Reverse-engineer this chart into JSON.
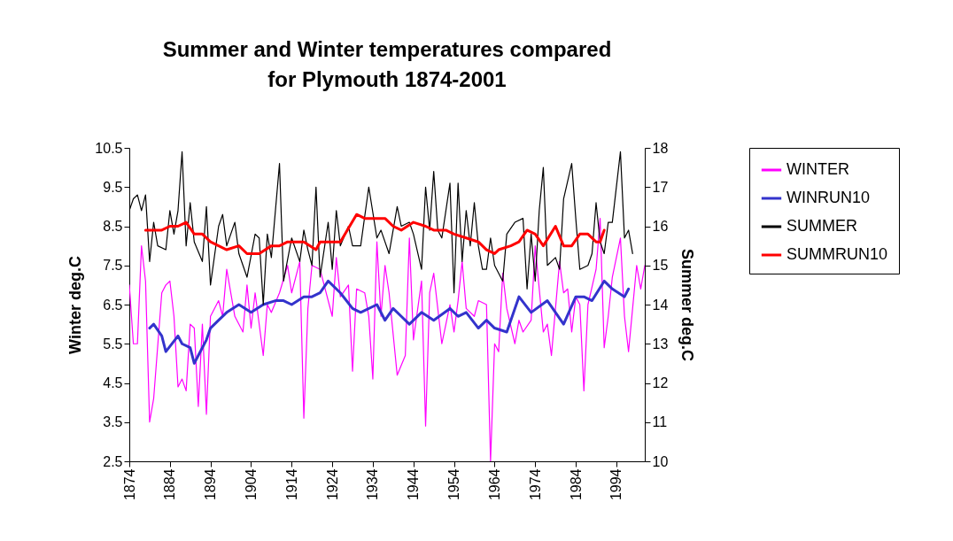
{
  "chart_data": {
    "type": "line",
    "title": "Summer and Winter temperatures compared\nfor Plymouth 1874-2001",
    "ylabel": "Winter deg.C",
    "y2label": "Summer deg.C",
    "xlim": [
      1874,
      2001
    ],
    "xticks": [
      1874,
      1884,
      1894,
      1904,
      1914,
      1924,
      1934,
      1944,
      1954,
      1964,
      1974,
      1984,
      1994
    ],
    "ylim": [
      2.5,
      10.5
    ],
    "yticks": [
      2.5,
      3.5,
      4.5,
      5.5,
      6.5,
      7.5,
      8.5,
      9.5,
      10.5
    ],
    "y2lim": [
      10,
      18
    ],
    "y2ticks": [
      10,
      11,
      12,
      13,
      14,
      15,
      16,
      17,
      18
    ],
    "legend": "right",
    "grid": false,
    "marker": "none",
    "line_style": "solid",
    "series": [
      {
        "name": "WINTER",
        "color": "#ff00ff",
        "x": [
          1874,
          1875,
          1876,
          1877,
          1878,
          1879,
          1880,
          1882,
          1883,
          1884,
          1885,
          1886,
          1887,
          1888,
          1889,
          1890,
          1891,
          1892,
          1893,
          1894,
          1896,
          1897,
          1898,
          1900,
          1902,
          1903,
          1904,
          1905,
          1907,
          1908,
          1909,
          1911,
          1913,
          1914,
          1916,
          1917,
          1918,
          1919,
          1921,
          1922,
          1924,
          1925,
          1926,
          1928,
          1929,
          1930,
          1932,
          1933,
          1934,
          1935,
          1936,
          1937,
          1938,
          1940,
          1942,
          1943,
          1944,
          1946,
          1947,
          1948,
          1949,
          1951,
          1952,
          1953,
          1954,
          1955,
          1956,
          1957,
          1959,
          1960,
          1962,
          1963,
          1964,
          1965,
          1966,
          1967,
          1969,
          1970,
          1971,
          1973,
          1974,
          1976,
          1977,
          1978,
          1980,
          1981,
          1982,
          1983,
          1984,
          1985,
          1986,
          1987,
          1989,
          1990,
          1991,
          1992,
          1993,
          1995,
          1996,
          1997,
          1999,
          2000,
          2001
        ],
        "values": [
          7.0,
          5.5,
          5.5,
          8.0,
          7.1,
          3.5,
          4.1,
          6.8,
          7.0,
          7.1,
          6.2,
          4.4,
          4.6,
          4.3,
          6.0,
          5.9,
          3.9,
          6.0,
          3.7,
          6.2,
          6.6,
          6.2,
          7.4,
          6.2,
          5.8,
          7.0,
          5.9,
          6.8,
          5.2,
          6.5,
          6.3,
          6.8,
          7.5,
          6.8,
          7.6,
          3.6,
          6.4,
          7.5,
          7.4,
          7.0,
          6.2,
          7.7,
          6.7,
          7.0,
          4.8,
          6.9,
          6.8,
          6.2,
          4.6,
          8.1,
          6.2,
          7.5,
          6.8,
          4.7,
          5.2,
          8.2,
          5.6,
          7.1,
          3.4,
          6.8,
          7.3,
          5.5,
          6.0,
          6.5,
          5.8,
          6.6,
          7.6,
          6.4,
          6.2,
          6.6,
          6.5,
          2.5,
          5.5,
          5.3,
          7.3,
          6.4,
          5.5,
          6.1,
          5.8,
          6.1,
          8.0,
          5.8,
          6.0,
          5.2,
          7.6,
          6.8,
          6.9,
          5.8,
          6.7,
          6.5,
          4.3,
          6.5,
          7.4,
          8.7,
          5.4,
          6.2,
          7.2,
          8.2,
          6.2,
          5.3,
          7.5,
          6.9,
          7.5
        ]
      },
      {
        "name": "WINRUN10",
        "color": "#3333cc",
        "x": [
          1879,
          1880,
          1882,
          1883,
          1886,
          1887,
          1889,
          1890,
          1891,
          1893,
          1894,
          1896,
          1898,
          1901,
          1904,
          1907,
          1910,
          1912,
          1914,
          1917,
          1919,
          1921,
          1923,
          1926,
          1929,
          1931,
          1935,
          1937,
          1939,
          1941,
          1943,
          1946,
          1949,
          1953,
          1955,
          1957,
          1960,
          1962,
          1964,
          1967,
          1970,
          1973,
          1977,
          1981,
          1984,
          1986,
          1988,
          1991,
          1993,
          1996,
          1997
        ],
        "values": [
          5.9,
          6.0,
          5.7,
          5.3,
          5.7,
          5.5,
          5.4,
          5.0,
          5.2,
          5.6,
          5.9,
          6.1,
          6.3,
          6.5,
          6.3,
          6.5,
          6.6,
          6.6,
          6.5,
          6.7,
          6.7,
          6.8,
          7.1,
          6.8,
          6.4,
          6.3,
          6.5,
          6.1,
          6.4,
          6.2,
          6.0,
          6.3,
          6.1,
          6.4,
          6.2,
          6.3,
          5.9,
          6.1,
          5.9,
          5.8,
          6.7,
          6.3,
          6.6,
          6.0,
          6.7,
          6.7,
          6.6,
          7.1,
          6.9,
          6.7,
          6.9
        ]
      },
      {
        "name": "SUMMER",
        "color": "#000000",
        "axis": "y2",
        "x": [
          1874,
          1875,
          1876,
          1877,
          1878,
          1879,
          1880,
          1881,
          1883,
          1884,
          1885,
          1886,
          1887,
          1888,
          1889,
          1890,
          1892,
          1893,
          1894,
          1896,
          1897,
          1898,
          1900,
          1901,
          1903,
          1905,
          1906,
          1907,
          1908,
          1909,
          1911,
          1912,
          1914,
          1916,
          1917,
          1918,
          1919,
          1920,
          1921,
          1923,
          1924,
          1925,
          1926,
          1928,
          1929,
          1931,
          1933,
          1935,
          1936,
          1938,
          1940,
          1941,
          1943,
          1944,
          1946,
          1947,
          1948,
          1949,
          1950,
          1951,
          1953,
          1954,
          1955,
          1956,
          1957,
          1958,
          1959,
          1960,
          1961,
          1962,
          1963,
          1964,
          1966,
          1967,
          1969,
          1971,
          1972,
          1973,
          1974,
          1975,
          1976,
          1977,
          1979,
          1980,
          1981,
          1983,
          1984,
          1985,
          1987,
          1988,
          1989,
          1990,
          1991,
          1992,
          1993,
          1995,
          1996,
          1997,
          1998
        ],
        "values": [
          16.4,
          16.7,
          16.8,
          16.4,
          16.8,
          15.1,
          16.1,
          15.5,
          15.4,
          16.4,
          15.8,
          16.4,
          17.9,
          15.5,
          16.6,
          15.6,
          15.1,
          16.5,
          14.5,
          16.0,
          16.3,
          15.5,
          16.1,
          15.3,
          14.7,
          15.8,
          15.7,
          14.0,
          15.8,
          15.2,
          17.6,
          14.6,
          15.7,
          15.1,
          15.9,
          15.4,
          15.0,
          17.0,
          14.7,
          16.1,
          14.9,
          16.4,
          15.5,
          16.0,
          15.5,
          15.5,
          17.0,
          15.7,
          15.9,
          15.3,
          16.5,
          16.0,
          16.1,
          15.8,
          14.9,
          17.0,
          15.9,
          17.4,
          15.9,
          15.7,
          17.1,
          14.3,
          17.1,
          15.1,
          16.4,
          15.5,
          16.6,
          15.5,
          14.9,
          14.9,
          15.7,
          15.0,
          14.6,
          15.8,
          16.1,
          16.2,
          14.4,
          15.8,
          14.6,
          16.4,
          17.5,
          15.0,
          15.2,
          14.9,
          16.7,
          17.6,
          16.2,
          14.9,
          15.0,
          15.3,
          16.6,
          15.6,
          15.3,
          16.1,
          16.1,
          17.9,
          15.7,
          15.9,
          15.3
        ]
      },
      {
        "name": "SUMMRUN10",
        "color": "#ff0000",
        "axis": "y2",
        "x": [
          1878,
          1880,
          1881,
          1882,
          1884,
          1886,
          1888,
          1890,
          1892,
          1894,
          1896,
          1898,
          1901,
          1903,
          1906,
          1909,
          1911,
          1913,
          1917,
          1920,
          1921,
          1924,
          1926,
          1930,
          1932,
          1935,
          1937,
          1939,
          1941,
          1944,
          1947,
          1949,
          1952,
          1954,
          1957,
          1960,
          1962,
          1964,
          1965,
          1968,
          1970,
          1972,
          1974,
          1976,
          1979,
          1981,
          1983,
          1985,
          1987,
          1989,
          1990,
          1991
        ],
        "values": [
          15.9,
          15.9,
          15.9,
          15.9,
          16.0,
          16.0,
          16.1,
          15.8,
          15.8,
          15.6,
          15.5,
          15.4,
          15.5,
          15.3,
          15.3,
          15.5,
          15.5,
          15.6,
          15.6,
          15.4,
          15.6,
          15.6,
          15.6,
          16.3,
          16.2,
          16.2,
          16.2,
          16.0,
          15.9,
          16.1,
          16.0,
          15.9,
          15.9,
          15.8,
          15.7,
          15.6,
          15.4,
          15.3,
          15.4,
          15.5,
          15.6,
          15.9,
          15.8,
          15.5,
          16.0,
          15.5,
          15.5,
          15.8,
          15.8,
          15.6,
          15.6,
          15.9
        ]
      }
    ]
  }
}
